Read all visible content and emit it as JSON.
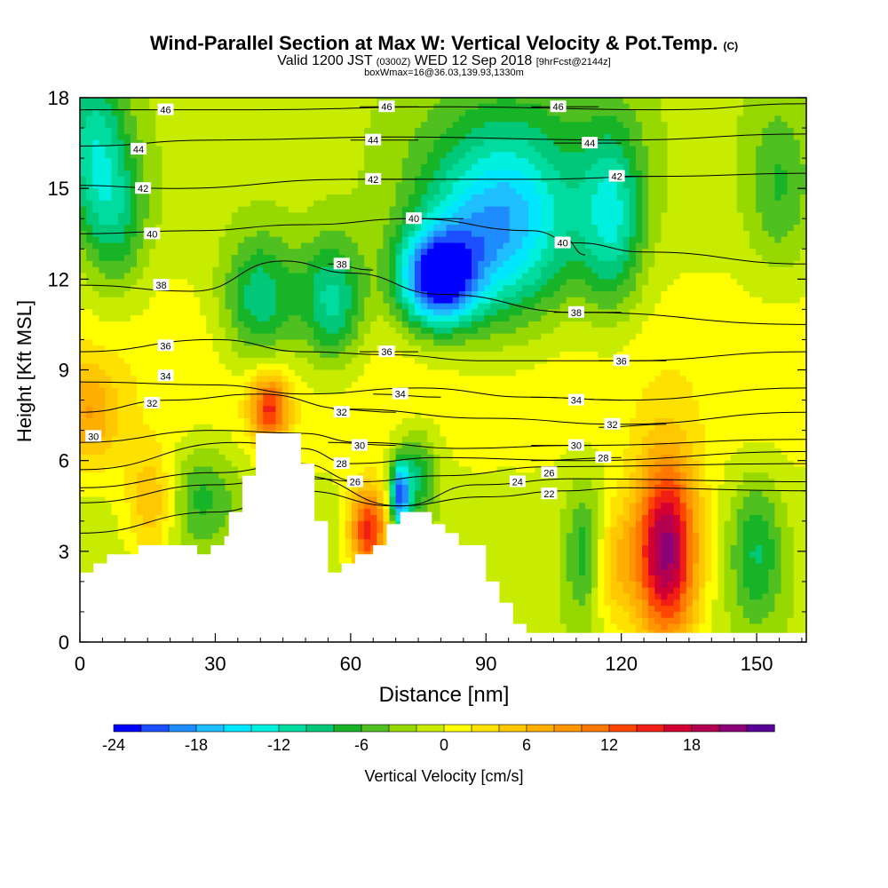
{
  "chart_data": {
    "type": "heatmap",
    "title": "Wind-Parallel Section at Max W: Vertical Velocity & Pot.Temp.",
    "title_mark": "(C)",
    "subtitle_main": "Valid 1200 JST",
    "subtitle_z": "(0300Z)",
    "subtitle_date": "WED 12 Sep 2018",
    "subtitle_fcst": "[9hrFcst@2144z]",
    "subline": "boxWmax=16@36.03,139.93,1330m",
    "xlabel": "Distance [nm]",
    "ylabel": "Height [Kft MSL]",
    "xlim": [
      0,
      161
    ],
    "ylim": [
      0,
      18
    ],
    "x_ticks": [
      "0",
      "30",
      "60",
      "90",
      "120",
      "150"
    ],
    "y_ticks": [
      "0",
      "3",
      "6",
      "9",
      "12",
      "15",
      "18"
    ],
    "colorbar": {
      "label": "Vertical Velocity [cm/s]",
      "ticks": [
        "-24",
        "-18",
        "-12",
        "-6",
        "0",
        "6",
        "12",
        "18"
      ],
      "levels": [
        -24,
        -22,
        -20,
        -18,
        -16,
        -14,
        -12,
        -10,
        -8,
        -6,
        -4,
        -2,
        0,
        2,
        4,
        6,
        8,
        10,
        12,
        14,
        16,
        18,
        20,
        22
      ],
      "colors": [
        "#0000ff",
        "#1c50ff",
        "#1e8cff",
        "#1ebeff",
        "#00e6ff",
        "#00f0e0",
        "#00dca0",
        "#00c878",
        "#18b428",
        "#50c020",
        "#96d800",
        "#c8ec00",
        "#ffff00",
        "#ffe100",
        "#ffc800",
        "#ffaf00",
        "#ff9600",
        "#ff7800",
        "#ff4600",
        "#f01e14",
        "#d20032",
        "#b40050",
        "#8c0078",
        "#5a0096"
      ]
    },
    "terrain": [
      [
        0,
        2.3
      ],
      [
        3,
        2.3
      ],
      [
        3,
        2.6
      ],
      [
        6,
        2.6
      ],
      [
        6,
        2.9
      ],
      [
        13,
        2.9
      ],
      [
        13,
        3.2
      ],
      [
        26,
        3.2
      ],
      [
        26,
        2.9
      ],
      [
        29,
        2.9
      ],
      [
        29,
        3.2
      ],
      [
        32,
        3.2
      ],
      [
        32,
        3.5
      ],
      [
        33,
        3.5
      ],
      [
        33,
        4.3
      ],
      [
        36,
        4.3
      ],
      [
        36,
        5.5
      ],
      [
        39,
        5.5
      ],
      [
        39,
        6.9
      ],
      [
        49,
        6.9
      ],
      [
        49,
        5.9
      ],
      [
        52,
        5.9
      ],
      [
        52,
        4.0
      ],
      [
        55,
        4.0
      ],
      [
        55,
        2.3
      ],
      [
        58,
        2.3
      ],
      [
        58,
        2.6
      ],
      [
        61,
        2.6
      ],
      [
        61,
        2.9
      ],
      [
        65,
        2.9
      ],
      [
        65,
        3.2
      ],
      [
        68,
        3.2
      ],
      [
        68,
        3.9
      ],
      [
        71,
        3.9
      ],
      [
        71,
        4.3
      ],
      [
        78,
        4.3
      ],
      [
        78,
        3.9
      ],
      [
        81,
        3.9
      ],
      [
        81,
        3.6
      ],
      [
        84,
        3.6
      ],
      [
        84,
        3.2
      ],
      [
        90,
        3.2
      ],
      [
        90,
        2.0
      ],
      [
        93,
        2.0
      ],
      [
        93,
        1.3
      ],
      [
        96,
        1.3
      ],
      [
        96,
        0.6
      ],
      [
        99,
        0.6
      ],
      [
        99,
        0.3
      ],
      [
        161,
        0.3
      ]
    ],
    "theta_contours": [
      {
        "label": "22",
        "points": [
          [
            0,
            3.6
          ],
          [
            30,
            4.3
          ],
          [
            49,
            5.0
          ],
          [
            70,
            4.5
          ],
          [
            90,
            4.8
          ],
          [
            108,
            5.0
          ],
          [
            120,
            5.1
          ],
          [
            161,
            5.0
          ]
        ],
        "label_at": [
          104,
          4.9
        ]
      },
      {
        "label": "24",
        "points": [
          [
            0,
            4.6
          ],
          [
            30,
            5.2
          ],
          [
            49,
            5.5
          ],
          [
            71,
            4.5
          ],
          [
            88,
            5.2
          ],
          [
            110,
            5.4
          ],
          [
            161,
            5.3
          ]
        ],
        "label_at": [
          97,
          5.3
        ]
      },
      {
        "label": "26",
        "points": [
          [
            0,
            5.1
          ],
          [
            30,
            5.6
          ],
          [
            49,
            5.9
          ],
          [
            62,
            5.3
          ],
          [
            80,
            5.5
          ],
          [
            105,
            5.8
          ],
          [
            161,
            5.9
          ]
        ],
        "label_at": [
          104,
          5.6
        ]
      },
      {
        "label": "26",
        "points": [
          [
            52,
            5.4
          ],
          [
            62,
            5.3
          ]
        ],
        "label_at": [
          61,
          5.3
        ]
      },
      {
        "label": "28",
        "points": [
          [
            0,
            5.7
          ],
          [
            35,
            6.6
          ],
          [
            49,
            6.4
          ],
          [
            60,
            5.9
          ],
          [
            80,
            6.1
          ],
          [
            110,
            6.0
          ],
          [
            161,
            6.3
          ]
        ],
        "label_at": [
          58,
          5.9
        ]
      },
      {
        "label": "28",
        "points": [
          [
            100,
            6.0
          ],
          [
            120,
            6.1
          ]
        ],
        "label_at": [
          116,
          6.1
        ]
      },
      {
        "label": "30",
        "points": [
          [
            0,
            6.6
          ],
          [
            30,
            7.0
          ],
          [
            49,
            6.9
          ],
          [
            62,
            6.6
          ],
          [
            85,
            6.4
          ],
          [
            110,
            6.5
          ],
          [
            161,
            6.7
          ]
        ],
        "label_at": [
          3,
          6.8
        ]
      },
      {
        "label": "30",
        "points": [
          [
            55,
            6.6
          ],
          [
            70,
            6.5
          ]
        ],
        "label_at": [
          62,
          6.5
        ]
      },
      {
        "label": "30",
        "points": [
          [
            100,
            6.5
          ],
          [
            115,
            6.5
          ]
        ],
        "label_at": [
          110,
          6.5
        ]
      },
      {
        "label": "32",
        "points": [
          [
            0,
            7.6
          ],
          [
            20,
            8.0
          ],
          [
            40,
            8.2
          ],
          [
            60,
            7.7
          ],
          [
            90,
            7.4
          ],
          [
            120,
            7.2
          ],
          [
            161,
            7.6
          ]
        ],
        "label_at": [
          16,
          7.9
        ]
      },
      {
        "label": "32",
        "points": [
          [
            56,
            7.7
          ],
          [
            70,
            7.6
          ]
        ],
        "label_at": [
          58,
          7.6
        ]
      },
      {
        "label": "32",
        "points": [
          [
            115,
            7.1
          ],
          [
            130,
            7.2
          ]
        ],
        "label_at": [
          118,
          7.2
        ]
      },
      {
        "label": "34",
        "points": [
          [
            0,
            8.6
          ],
          [
            30,
            8.5
          ],
          [
            50,
            8.2
          ],
          [
            75,
            8.4
          ],
          [
            100,
            8.1
          ],
          [
            120,
            8.0
          ],
          [
            161,
            8.4
          ]
        ],
        "label_at": [
          19,
          8.8
        ]
      },
      {
        "label": "34",
        "points": [
          [
            65,
            8.2
          ],
          [
            80,
            8.1
          ]
        ],
        "label_at": [
          71,
          8.2
        ]
      },
      {
        "label": "34",
        "points": [
          [
            100,
            8.1
          ],
          [
            120,
            8.0
          ]
        ],
        "label_at": [
          110,
          8.0
        ]
      },
      {
        "label": "36",
        "points": [
          [
            0,
            9.6
          ],
          [
            30,
            10.0
          ],
          [
            50,
            9.6
          ],
          [
            68,
            9.5
          ],
          [
            90,
            9.3
          ],
          [
            120,
            9.3
          ],
          [
            161,
            9.6
          ]
        ],
        "label_at": [
          19,
          9.8
        ]
      },
      {
        "label": "36",
        "points": [
          [
            62,
            9.6
          ],
          [
            75,
            9.6
          ]
        ],
        "label_at": [
          68,
          9.6
        ]
      },
      {
        "label": "36",
        "points": [
          [
            115,
            9.3
          ],
          [
            130,
            9.3
          ]
        ],
        "label_at": [
          120,
          9.3
        ]
      },
      {
        "label": "38",
        "points": [
          [
            0,
            11.8
          ],
          [
            25,
            11.6
          ],
          [
            45,
            12.6
          ],
          [
            60,
            12.2
          ],
          [
            80,
            11.5
          ],
          [
            110,
            10.9
          ],
          [
            161,
            10.5
          ]
        ],
        "label_at": [
          18,
          11.8
        ]
      },
      {
        "label": "38",
        "points": [
          [
            55,
            12.5
          ],
          [
            65,
            12.3
          ]
        ],
        "label_at": [
          58,
          12.5
        ]
      },
      {
        "label": "38",
        "points": [
          [
            105,
            10.9
          ],
          [
            120,
            10.9
          ]
        ],
        "label_at": [
          110,
          10.9
        ]
      },
      {
        "label": "40",
        "points": [
          [
            0,
            13.5
          ],
          [
            25,
            13.6
          ],
          [
            50,
            13.8
          ],
          [
            74,
            14.0
          ],
          [
            100,
            13.6
          ],
          [
            110,
            13.2
          ],
          [
            125,
            12.9
          ],
          [
            161,
            12.5
          ]
        ],
        "label_at": [
          16,
          13.5
        ]
      },
      {
        "label": "40",
        "points": [
          [
            70,
            14.0
          ],
          [
            85,
            14.0
          ]
        ],
        "label_at": [
          74,
          14.0
        ]
      },
      {
        "label": "40",
        "points": [
          [
            107,
            13.4
          ],
          [
            112,
            12.8
          ]
        ],
        "label_at": [
          107,
          13.2
        ]
      },
      {
        "label": "42",
        "points": [
          [
            0,
            15.1
          ],
          [
            20,
            15.0
          ],
          [
            60,
            15.3
          ],
          [
            100,
            15.3
          ],
          [
            130,
            15.4
          ],
          [
            161,
            15.5
          ]
        ],
        "label_at": [
          14,
          15.0
        ]
      },
      {
        "label": "42",
        "points": [
          [
            60,
            15.3
          ],
          [
            75,
            15.3
          ]
        ],
        "label_at": [
          65,
          15.3
        ]
      },
      {
        "label": "42",
        "points": [
          [
            118,
            15.4
          ],
          [
            132,
            15.4
          ]
        ],
        "label_at": [
          119,
          15.4
        ]
      },
      {
        "label": "44",
        "points": [
          [
            0,
            16.4
          ],
          [
            30,
            16.6
          ],
          [
            70,
            16.7
          ],
          [
            120,
            16.6
          ],
          [
            161,
            16.8
          ]
        ],
        "label_at": [
          13,
          16.3
        ]
      },
      {
        "label": "44",
        "points": [
          [
            60,
            16.6
          ],
          [
            75,
            16.6
          ]
        ],
        "label_at": [
          65,
          16.6
        ]
      },
      {
        "label": "44",
        "points": [
          [
            105,
            16.5
          ],
          [
            120,
            16.5
          ]
        ],
        "label_at": [
          113,
          16.5
        ]
      },
      {
        "label": "46",
        "points": [
          [
            0,
            17.6
          ],
          [
            40,
            17.6
          ],
          [
            80,
            17.7
          ],
          [
            130,
            17.6
          ],
          [
            161,
            17.8
          ]
        ],
        "label_at": [
          19,
          17.6
        ]
      },
      {
        "label": "46",
        "points": [
          [
            62,
            17.7
          ],
          [
            75,
            17.7
          ]
        ],
        "label_at": [
          68,
          17.7
        ]
      },
      {
        "label": "46",
        "points": [
          [
            100,
            17.7
          ],
          [
            115,
            17.7
          ]
        ],
        "label_at": [
          106,
          17.7
        ]
      }
    ],
    "velocity_features": [
      {
        "x": 3,
        "y": 16.5,
        "sx": 5,
        "sy": 2.0,
        "w": -9
      },
      {
        "x": 8,
        "y": 14.0,
        "sx": 5,
        "sy": 1.8,
        "w": -7
      },
      {
        "x": 2,
        "y": 7.5,
        "sx": 5,
        "sy": 1.2,
        "w": 7
      },
      {
        "x": 16,
        "y": 4.6,
        "sx": 4,
        "sy": 1.3,
        "w": 7
      },
      {
        "x": 27,
        "y": 4.8,
        "sx": 6,
        "sy": 1.2,
        "w": -6
      },
      {
        "x": 42,
        "y": 7.7,
        "sx": 3,
        "sy": 0.8,
        "w": 14
      },
      {
        "x": 40,
        "y": 11.3,
        "sx": 6,
        "sy": 1.5,
        "w": -10
      },
      {
        "x": 56,
        "y": 11.2,
        "sx": 5,
        "sy": 1.5,
        "w": -11
      },
      {
        "x": 64,
        "y": 3.7,
        "sx": 3,
        "sy": 1.0,
        "w": 16
      },
      {
        "x": 71,
        "y": 4.8,
        "sx": 1.5,
        "sy": 0.8,
        "w": -20
      },
      {
        "x": 75,
        "y": 5.5,
        "sx": 3,
        "sy": 1.0,
        "w": -8
      },
      {
        "x": 79,
        "y": 12.0,
        "sx": 6,
        "sy": 1.1,
        "w": -22
      },
      {
        "x": 88,
        "y": 13.2,
        "sx": 10,
        "sy": 2.0,
        "w": -9
      },
      {
        "x": 98,
        "y": 13.6,
        "sx": 10,
        "sy": 2.2,
        "w": -7
      },
      {
        "x": 118,
        "y": 14.0,
        "sx": 5,
        "sy": 2.2,
        "w": -10
      },
      {
        "x": 95,
        "y": 15.5,
        "sx": 15,
        "sy": 2.5,
        "w": -5
      },
      {
        "x": 112,
        "y": 3.0,
        "sx": 3,
        "sy": 1.6,
        "w": -7
      },
      {
        "x": 118,
        "y": 2.5,
        "sx": 4,
        "sy": 1.5,
        "w": 6
      },
      {
        "x": 130,
        "y": 3.0,
        "sx": 5,
        "sy": 2.2,
        "w": 22
      },
      {
        "x": 150,
        "y": 3.0,
        "sx": 4,
        "sy": 1.7,
        "w": -7
      },
      {
        "x": 155,
        "y": 15.0,
        "sx": 5,
        "sy": 2.0,
        "w": -5
      }
    ]
  }
}
